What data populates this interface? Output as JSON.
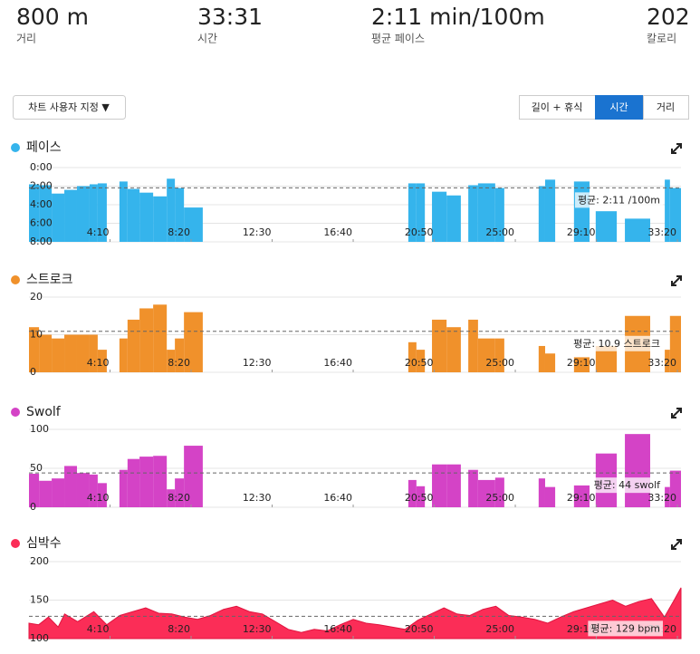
{
  "stats": [
    {
      "value": "800 m",
      "label": "거리"
    },
    {
      "value": "33:31",
      "label": "시간"
    },
    {
      "value": "2:11 min/100m",
      "label": "평균 페이스"
    },
    {
      "value": "202",
      "label": "칼로리"
    }
  ],
  "controls": {
    "customize": "차트 사용자 지정 ▼",
    "tabs": [
      "길이 + 휴식",
      "시간",
      "거리"
    ],
    "active_tab": 1
  },
  "chart_data": [
    {
      "type": "bar",
      "title": "페이스",
      "color": "#35b4ec",
      "grid": true,
      "y_reverse": true,
      "x": [
        0,
        31,
        70,
        109,
        148,
        187,
        212,
        279,
        304,
        341,
        383,
        425,
        450,
        478,
        1170,
        1195,
        1243,
        1288,
        1355,
        1385,
        1438,
        1572,
        1592,
        1681,
        1748,
        1838,
        1961,
        1977
      ],
      "x_end": [
        31,
        70,
        109,
        148,
        187,
        212,
        240,
        304,
        341,
        383,
        425,
        450,
        478,
        536,
        1195,
        1221,
        1288,
        1332,
        1385,
        1438,
        1466,
        1592,
        1623,
        1729,
        1813,
        1916,
        1977,
        2011
      ],
      "values": [
        1.8,
        1.9,
        2.8,
        2.4,
        2.0,
        1.8,
        1.7,
        1.5,
        2.3,
        2.7,
        3.1,
        1.2,
        2.2,
        4.3,
        1.7,
        1.7,
        2.6,
        3.0,
        1.9,
        1.7,
        2.2,
        2.0,
        1.3,
        1.5,
        4.7,
        5.5,
        1.3,
        2.2
      ],
      "xlim": [
        0,
        2011
      ],
      "xticks": [
        {
          "value": 250,
          "label": "4:10"
        },
        {
          "value": 500,
          "label": "8:20"
        },
        {
          "value": 750,
          "label": "12:30"
        },
        {
          "value": 1000,
          "label": "16:40"
        },
        {
          "value": 1250,
          "label": "20:50"
        },
        {
          "value": 1500,
          "label": "25:00"
        },
        {
          "value": 1750,
          "label": "29:10"
        },
        {
          "value": 2000,
          "label": "33:20"
        }
      ],
      "ylim": [
        0,
        8
      ],
      "yticks": [
        {
          "value": 0,
          "label": "0:00"
        },
        {
          "value": 2,
          "label": "2:00"
        },
        {
          "value": 4,
          "label": "4:00"
        },
        {
          "value": 6,
          "label": "6:00"
        },
        {
          "value": 8,
          "label": "8:00"
        }
      ],
      "average": 2.183,
      "average_label": "평균: 2:11 /100m"
    },
    {
      "type": "bar",
      "title": "스트로크",
      "color": "#f0912b",
      "grid": true,
      "x": [
        0,
        31,
        70,
        109,
        148,
        187,
        212,
        279,
        304,
        341,
        383,
        425,
        450,
        478,
        1170,
        1195,
        1243,
        1288,
        1355,
        1385,
        1438,
        1572,
        1592,
        1681,
        1748,
        1838,
        1961,
        1977
      ],
      "x_end": [
        31,
        70,
        109,
        148,
        187,
        212,
        240,
        304,
        341,
        383,
        425,
        450,
        478,
        536,
        1195,
        1221,
        1288,
        1332,
        1385,
        1438,
        1466,
        1592,
        1623,
        1729,
        1813,
        1916,
        1977,
        2011
      ],
      "values": [
        12,
        10,
        9,
        10,
        10,
        10,
        6,
        9,
        14,
        17,
        18,
        6,
        9,
        16,
        8,
        6,
        14,
        12,
        14,
        9,
        9,
        7,
        5,
        4,
        7,
        15,
        6,
        15
      ],
      "xlim": [
        0,
        2011
      ],
      "xticks": [
        {
          "value": 250,
          "label": "4:10"
        },
        {
          "value": 500,
          "label": "8:20"
        },
        {
          "value": 750,
          "label": "12:30"
        },
        {
          "value": 1000,
          "label": "16:40"
        },
        {
          "value": 1250,
          "label": "20:50"
        },
        {
          "value": 1500,
          "label": "25:00"
        },
        {
          "value": 1750,
          "label": "29:10"
        },
        {
          "value": 2000,
          "label": "33:20"
        }
      ],
      "ylim": [
        0,
        20
      ],
      "yticks": [
        0,
        10,
        20
      ],
      "average": 10.9,
      "average_label": "평균: 10.9 스트로크"
    },
    {
      "type": "bar",
      "title": "Swolf",
      "color": "#d443c6",
      "grid": true,
      "x": [
        0,
        31,
        70,
        109,
        148,
        187,
        212,
        279,
        304,
        341,
        383,
        425,
        450,
        478,
        1170,
        1195,
        1243,
        1288,
        1355,
        1385,
        1438,
        1572,
        1592,
        1681,
        1748,
        1838,
        1961,
        1977
      ],
      "x_end": [
        31,
        70,
        109,
        148,
        187,
        212,
        240,
        304,
        341,
        383,
        425,
        450,
        478,
        536,
        1195,
        1221,
        1288,
        1332,
        1385,
        1438,
        1466,
        1592,
        1623,
        1729,
        1813,
        1916,
        1977,
        2011
      ],
      "values": [
        43,
        34,
        37,
        53,
        44,
        42,
        31,
        48,
        62,
        65,
        66,
        23,
        37,
        79,
        35,
        27,
        55,
        55,
        48,
        35,
        38,
        37,
        26,
        28,
        69,
        94,
        26,
        47
      ],
      "xlim": [
        0,
        2011
      ],
      "xticks": [
        {
          "value": 250,
          "label": "4:10"
        },
        {
          "value": 500,
          "label": "8:20"
        },
        {
          "value": 750,
          "label": "12:30"
        },
        {
          "value": 1000,
          "label": "16:40"
        },
        {
          "value": 1250,
          "label": "20:50"
        },
        {
          "value": 1500,
          "label": "25:00"
        },
        {
          "value": 1750,
          "label": "29:10"
        },
        {
          "value": 2000,
          "label": "33:20"
        }
      ],
      "ylim": [
        0,
        100
      ],
      "yticks": [
        0,
        50,
        100
      ],
      "average": 44,
      "average_label": "평균: 44 swolf"
    },
    {
      "type": "area",
      "title": "심박수",
      "color": "#fb2d57",
      "grid": true,
      "x": [
        0,
        30,
        60,
        90,
        110,
        150,
        200,
        240,
        280,
        320,
        360,
        400,
        440,
        480,
        520,
        560,
        600,
        640,
        680,
        720,
        760,
        800,
        840,
        880,
        920,
        960,
        1000,
        1040,
        1080,
        1120,
        1160,
        1200,
        1240,
        1280,
        1320,
        1360,
        1400,
        1440,
        1480,
        1520,
        1560,
        1600,
        1640,
        1680,
        1720,
        1760,
        1800,
        1840,
        1880,
        1920,
        1960,
        1990,
        2011
      ],
      "values": [
        120,
        118,
        128,
        115,
        132,
        122,
        135,
        118,
        130,
        135,
        140,
        133,
        132,
        128,
        125,
        130,
        138,
        142,
        135,
        132,
        122,
        112,
        108,
        112,
        110,
        118,
        125,
        120,
        118,
        115,
        112,
        124,
        132,
        140,
        132,
        130,
        138,
        142,
        130,
        128,
        125,
        120,
        128,
        135,
        140,
        145,
        150,
        142,
        148,
        152,
        128,
        150,
        166
      ],
      "xlim": [
        0,
        2011
      ],
      "xticks": [
        {
          "value": 250,
          "label": "4:10"
        },
        {
          "value": 500,
          "label": "8:20"
        },
        {
          "value": 750,
          "label": "12:30"
        },
        {
          "value": 1000,
          "label": "16:40"
        },
        {
          "value": 1250,
          "label": "20:50"
        },
        {
          "value": 1500,
          "label": "25:00"
        },
        {
          "value": 1750,
          "label": "29:10"
        },
        {
          "value": 2000,
          "label": "33:20"
        }
      ],
      "ylim": [
        100,
        200
      ],
      "yticks": [
        100,
        150,
        200
      ],
      "average": 129,
      "average_label": "평균: 129 bpm"
    }
  ]
}
